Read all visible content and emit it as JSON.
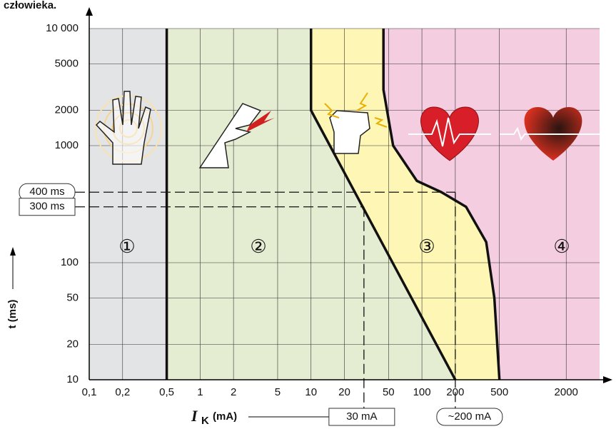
{
  "chart_data": {
    "type": "zones",
    "title": "człowieka.",
    "y_label": "t (ms)",
    "x_label_symbol": "I",
    "x_label_subscript": "K",
    "x_label_unit": "(mA)",
    "log_x": true,
    "log_y": true,
    "grid": true,
    "xlim": [
      0.1,
      4000
    ],
    "ylim": [
      10,
      10000
    ],
    "xticks": [
      {
        "value": 0.1,
        "label": "0,1"
      },
      {
        "value": 0.2,
        "label": "0,2"
      },
      {
        "value": 0.5,
        "label": "0,5"
      },
      1,
      2,
      5,
      10,
      20,
      50,
      100,
      200,
      500,
      2000
    ],
    "yticks": [
      10,
      20,
      50,
      100,
      1000,
      2000,
      5000,
      {
        "value": 10000,
        "label": "10 000"
      }
    ],
    "zone_labels": [
      "①",
      "②",
      "③",
      "④"
    ],
    "zone_colors": [
      "#e3e4e6",
      "#e4ecd2",
      "#fdf6b4",
      "#f5cde0"
    ],
    "boundaries": [
      {
        "x": [
          0.5,
          0.5
        ],
        "y": [
          10000,
          10
        ]
      },
      {
        "x": [
          10,
          10,
          200
        ],
        "y": [
          10000,
          2000,
          10
        ]
      },
      {
        "x": [
          45,
          45,
          55,
          90,
          150,
          250,
          380,
          450,
          500
        ],
        "y": [
          10000,
          3000,
          1000,
          500,
          400,
          300,
          150,
          50,
          10
        ]
      }
    ],
    "references": [
      {
        "t": 400,
        "t_label": "400 ms",
        "current": 200,
        "current_label": "~200 mA"
      },
      {
        "t": 300,
        "t_label": "300 ms",
        "current": 30,
        "current_label": "30 mA"
      }
    ]
  }
}
